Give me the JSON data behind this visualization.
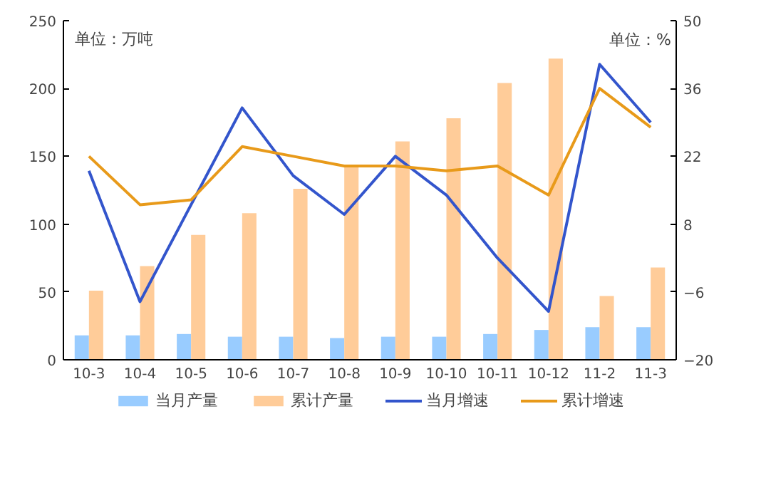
{
  "chart_data": {
    "type": "bar",
    "ylabel": "单位：万吨",
    "y2label": "单位：%",
    "categories": [
      "10-3",
      "10-4",
      "10-5",
      "10-6",
      "10-7",
      "10-8",
      "10-9",
      "10-10",
      "10-11",
      "10-12",
      "11-2",
      "11-3"
    ],
    "series": [
      {
        "name": "当月产量",
        "color": "#99ccff",
        "values": [
          18,
          18,
          19,
          17,
          17,
          16,
          17,
          17,
          19,
          22,
          24,
          24
        ]
      },
      {
        "name": "累计产量",
        "color": "#ffcc99",
        "values": [
          51,
          69,
          92,
          108,
          126,
          142,
          161,
          178,
          204,
          222,
          47,
          68
        ]
      },
      {
        "name": "当月增速",
        "type": "line",
        "axis": "y2",
        "color": "#3355cc",
        "values": [
          19,
          -8,
          12,
          32,
          18,
          10,
          22,
          14,
          1,
          -10,
          41,
          29
        ]
      },
      {
        "name": "累计增速",
        "type": "line",
        "axis": "y2",
        "color": "#e89a1a",
        "values": [
          22,
          12,
          13,
          24,
          22,
          20,
          20,
          19,
          20,
          14,
          36,
          28
        ]
      }
    ],
    "ylim": [
      0,
      250
    ],
    "yticks": [
      0,
      50,
      100,
      150,
      200,
      250
    ],
    "y2lim": [
      -20,
      50
    ],
    "y2ticks": [
      -20,
      -6,
      8,
      22,
      36,
      50
    ],
    "grid": false,
    "legend": "bottom",
    "marker": "none",
    "line_style": "solid"
  }
}
